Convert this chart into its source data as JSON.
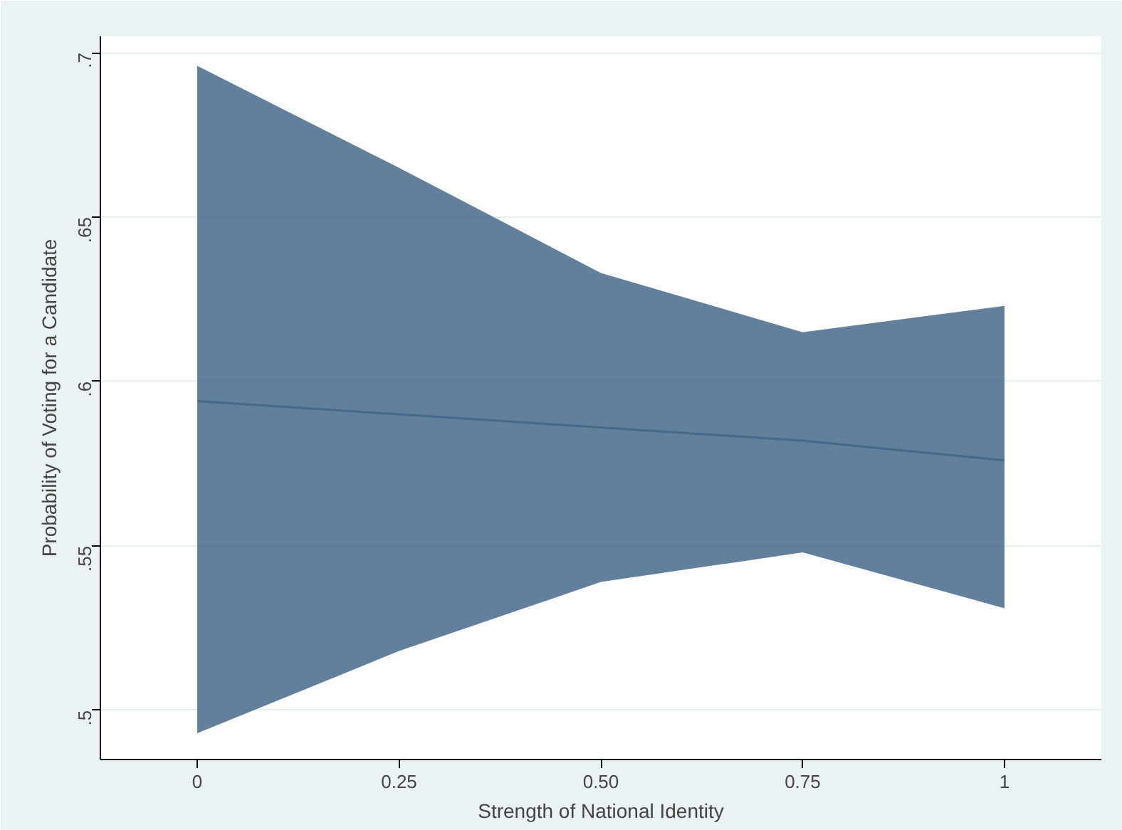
{
  "chart_data": {
    "type": "line",
    "xlabel": "Strength of National Identity",
    "ylabel": "Probability of Voting for a Candidate",
    "x": [
      0,
      0.25,
      0.5,
      0.75,
      1
    ],
    "series": [
      {
        "color": "#46698a",
        "values": [
          0.594,
          0.59,
          0.586,
          0.582,
          0.576
        ],
        "lower": [
          0.493,
          0.518,
          0.539,
          0.548,
          0.531
        ],
        "upper": [
          0.696,
          0.665,
          0.633,
          0.615,
          0.623
        ]
      }
    ],
    "xlim": [
      -0.12,
      1.12
    ],
    "ylim": [
      0.485,
      0.705
    ],
    "xticks": [
      0,
      0.25,
      {
        "value": 0.5,
        "label": "0.50"
      },
      0.75,
      1
    ],
    "yticks": [
      {
        "value": 0.5,
        "label": ".5"
      },
      {
        "value": 0.55,
        "label": ".55"
      },
      {
        "value": 0.6,
        "label": ".6"
      },
      {
        "value": 0.65,
        "label": ".65"
      },
      {
        "value": 0.7,
        "label": ".7"
      }
    ],
    "grid": "y",
    "line_style": "solid",
    "marker": "none"
  }
}
